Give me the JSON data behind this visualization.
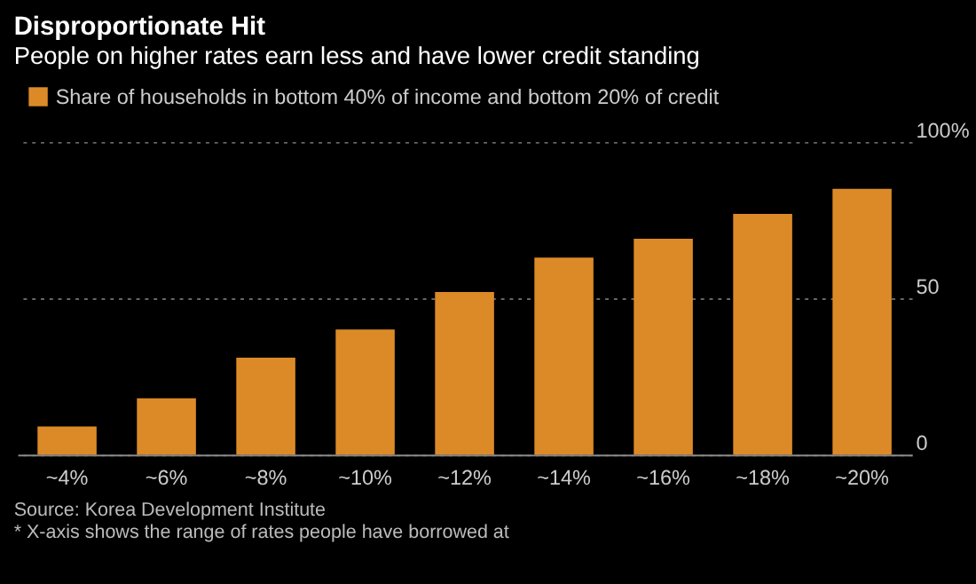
{
  "chart_data": {
    "type": "bar",
    "title": "Disproportionate Hit",
    "subtitle": "People on higher rates earn less and have lower credit standing",
    "categories": [
      "~4%",
      "~6%",
      "~8%",
      "~10%",
      "~12%",
      "~14%",
      "~16%",
      "~18%",
      "~20%"
    ],
    "series": [
      {
        "name": "Share of households in bottom 40% of income and bottom 20% of credit",
        "color": "#dc8a28",
        "values": [
          9,
          18,
          31,
          40,
          52,
          63,
          69,
          77,
          85
        ]
      }
    ],
    "ylim": [
      0,
      100
    ],
    "yticks": [
      0,
      50,
      {
        "value": 100,
        "label": "100%"
      }
    ],
    "grid": "y",
    "legend": "top left",
    "annotations": [
      "Source: Korea Development Institute",
      "* X-axis shows the range of rates people have borrowed at"
    ]
  }
}
